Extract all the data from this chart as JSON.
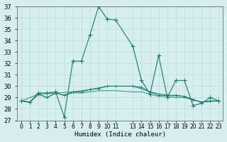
{
  "xlabel": "Humidex (Indice chaleur)",
  "ylabel": "",
  "bg_color": "#d6eeee",
  "line_color": "#1a7a6e",
  "xlim": [
    -0.5,
    23.5
  ],
  "ylim": [
    27,
    37
  ],
  "yticks": [
    27,
    28,
    29,
    30,
    31,
    32,
    33,
    34,
    35,
    36,
    37
  ],
  "xticks": [
    0,
    1,
    2,
    3,
    4,
    5,
    6,
    7,
    8,
    9,
    10,
    11,
    13,
    14,
    15,
    16,
    17,
    18,
    19,
    20,
    21,
    22,
    23
  ],
  "xtick_labels": [
    "0",
    "1",
    "2",
    "3",
    "4",
    "5",
    "6",
    "7",
    "8",
    "9",
    "10",
    "11",
    "13",
    "14",
    "15",
    "16",
    "17",
    "18",
    "19",
    "20",
    "21",
    "22",
    "23"
  ],
  "line1_x": [
    0,
    1,
    2,
    3,
    4,
    5,
    6,
    7,
    8,
    9,
    10,
    11,
    13,
    14,
    15,
    16,
    17,
    18,
    19,
    20,
    21,
    22,
    23
  ],
  "line1_y": [
    28.7,
    28.6,
    29.4,
    29.4,
    29.5,
    27.3,
    32.2,
    32.2,
    34.5,
    37.0,
    35.9,
    35.8,
    33.5,
    30.5,
    29.3,
    32.7,
    29.0,
    30.5,
    30.5,
    28.3,
    28.5,
    29.0,
    28.7
  ],
  "line2_x": [
    0,
    1,
    2,
    3,
    4,
    5,
    6,
    7,
    8,
    9,
    10,
    11,
    13,
    14,
    15,
    16,
    17,
    18,
    19,
    20,
    21,
    22,
    23
  ],
  "line2_y": [
    28.7,
    28.6,
    29.3,
    29.0,
    29.4,
    29.2,
    29.5,
    29.5,
    29.7,
    29.8,
    30.0,
    30.0,
    30.0,
    29.9,
    29.5,
    29.2,
    29.2,
    29.2,
    29.1,
    28.8,
    28.6,
    28.7,
    28.7
  ],
  "line3_x": [
    0,
    1,
    2,
    3,
    4,
    5,
    6,
    7,
    8,
    9,
    10,
    11,
    13,
    14,
    15,
    16,
    17,
    18,
    19,
    20,
    21,
    22,
    23
  ],
  "line3_y": [
    28.7,
    28.6,
    29.3,
    29.0,
    29.4,
    29.2,
    29.4,
    29.4,
    29.5,
    29.6,
    29.6,
    29.6,
    29.5,
    29.5,
    29.3,
    29.1,
    29.1,
    29.0,
    29.0,
    28.8,
    28.6,
    28.7,
    28.7
  ],
  "line4_x": [
    0,
    2,
    4,
    6,
    8,
    10,
    13,
    15,
    17,
    19,
    21,
    23
  ],
  "line4_y": [
    28.7,
    29.3,
    29.4,
    29.5,
    29.7,
    30.0,
    30.0,
    29.5,
    29.2,
    29.1,
    28.6,
    28.7
  ]
}
